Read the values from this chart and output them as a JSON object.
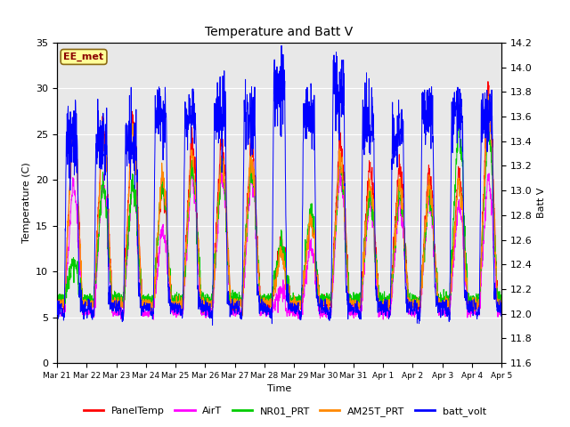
{
  "title": "Temperature and Batt V",
  "xlabel": "Time",
  "ylabel_left": "Temperature (C)",
  "ylabel_right": "Batt V",
  "annotation_text": "EE_met",
  "annotation_box_color": "#ffff99",
  "annotation_text_color": "#8b0000",
  "left_ylim": [
    0,
    35
  ],
  "right_ylim": [
    11.6,
    14.2
  ],
  "background_color": "#ffffff",
  "plot_bg_color": "#e8e8e8",
  "grid_color": "#ffffff",
  "legend_entries": [
    "PanelTemp",
    "AirT",
    "NR01_PRT",
    "AM25T_PRT",
    "batt_volt"
  ],
  "legend_colors": [
    "#ff0000",
    "#ff00ff",
    "#00cc00",
    "#ff8800",
    "#0000ff"
  ],
  "x_tick_labels": [
    "Mar 21",
    "Mar 22",
    "Mar 23",
    "Mar 24",
    "Mar 25",
    "Mar 26",
    "Mar 27",
    "Mar 28",
    "Mar 29",
    "Mar 30",
    "Mar 31",
    "Apr 1",
    "Apr 2",
    "Apr 3",
    "Apr 4",
    "Apr 5"
  ],
  "num_days": 15,
  "right_ticks": [
    11.6,
    11.8,
    12.0,
    12.2,
    12.4,
    12.6,
    12.8,
    13.0,
    13.2,
    13.4,
    13.6,
    13.8,
    14.0,
    14.2
  ],
  "left_ticks": [
    0,
    5,
    10,
    15,
    20,
    25,
    30,
    35
  ]
}
